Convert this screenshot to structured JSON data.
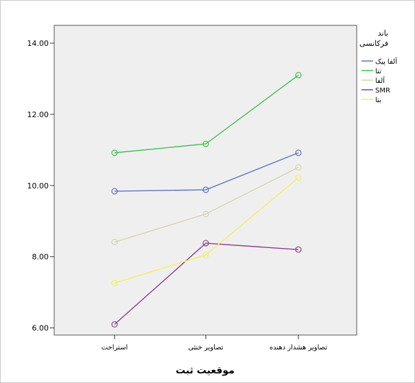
{
  "chart_data": {
    "type": "line",
    "xlabel": "موقعیت ثبت",
    "ylabel": "",
    "categories": [
      "استراحت",
      "تصاویر خنثی",
      "تصاویر هشدار دهنده"
    ],
    "ylim": [
      5.8,
      14.5
    ],
    "yticks": [
      "6.00",
      "8.00",
      "10.00",
      "12.00",
      "14.00"
    ],
    "legend_title": "باند\nفرکانسی",
    "legend_position": "right",
    "grid": false,
    "series": [
      {
        "name": "آلفا پیک",
        "color": "#5b73b9",
        "values": [
          9.84,
          9.88,
          10.92
        ]
      },
      {
        "name": "تتا",
        "color": "#3fbf4f",
        "values": [
          10.92,
          11.17,
          13.1
        ]
      },
      {
        "name": "آلفا",
        "color": "#d8d2b2",
        "values": [
          8.41,
          9.2,
          10.51
        ]
      },
      {
        "name": "SMR",
        "color": "#8e3a8e",
        "values": [
          6.1,
          8.38,
          8.2
        ]
      },
      {
        "name": "بتا",
        "color": "#f3ef5f",
        "values": [
          7.26,
          8.05,
          10.22
        ]
      }
    ]
  }
}
